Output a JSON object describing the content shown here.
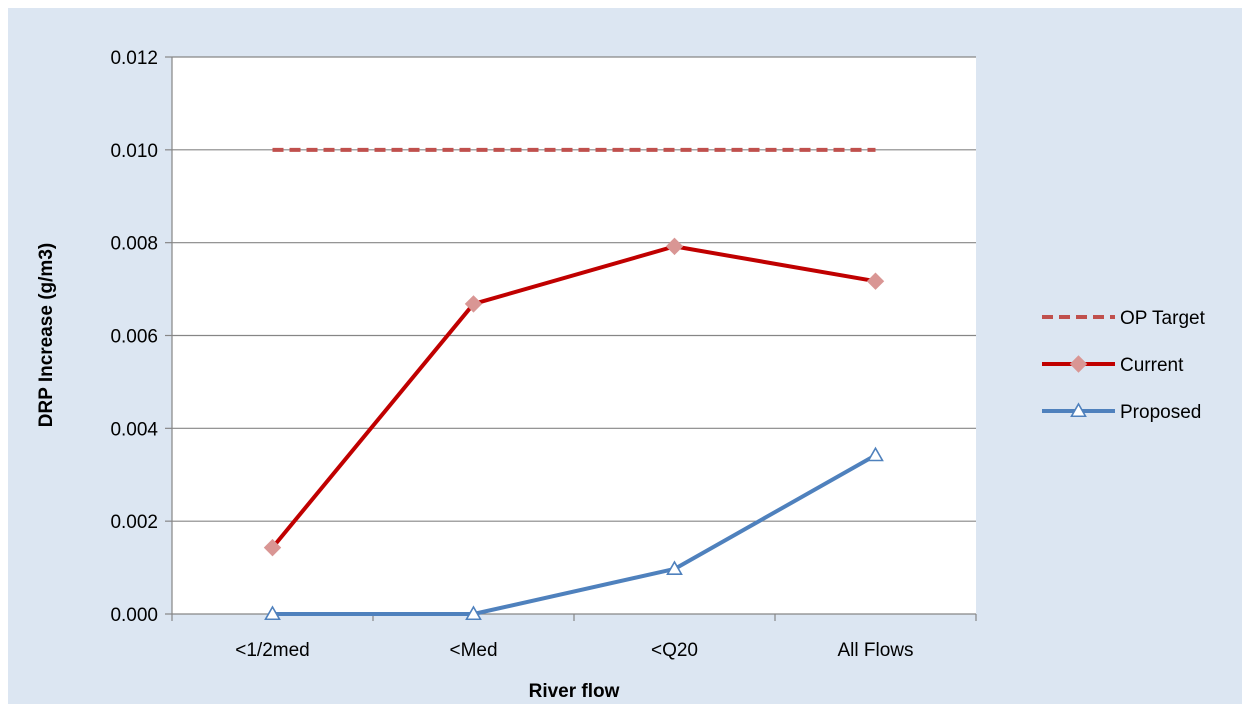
{
  "chart_data": {
    "type": "line",
    "categories": [
      "<1/2med",
      "<Med",
      "<Q20",
      "All Flows"
    ],
    "series": [
      {
        "name": "OP Target",
        "values": [
          0.01,
          0.01,
          0.01,
          0.01
        ],
        "color": "#c0504d",
        "style": "dashed",
        "marker": "none"
      },
      {
        "name": "Current",
        "values": [
          0.00143,
          0.00668,
          0.00792,
          0.00717
        ],
        "color": "#c00000",
        "style": "solid",
        "marker": "diamond",
        "marker_color": "#d99694"
      },
      {
        "name": "Proposed",
        "values": [
          0.0,
          0.0,
          0.00097,
          0.00342
        ],
        "color": "#4f81bd",
        "style": "solid",
        "marker": "triangle"
      }
    ],
    "xlabel": "River flow",
    "ylabel": "DRP Increase (g/m3)",
    "ylim": [
      0,
      0.012
    ],
    "yticks": [
      "0.000",
      "0.002",
      "0.004",
      "0.006",
      "0.008",
      "0.010",
      "0.012"
    ],
    "grid": true,
    "legend_position": "right",
    "background_color": "#dce6f2",
    "plot_background": "#ffffff",
    "gridline_color": "#868686"
  }
}
